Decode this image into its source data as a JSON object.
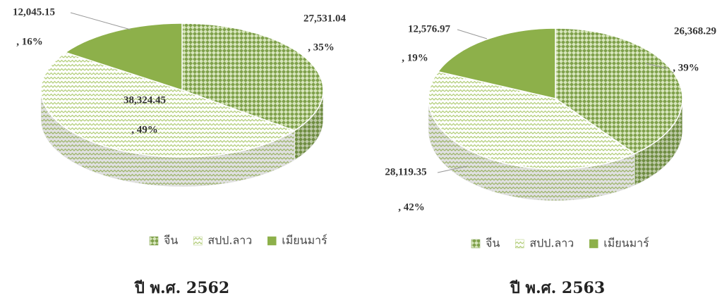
{
  "chart_data": [
    {
      "type": "pie3d",
      "title": "ปี พ.ศ. 2562",
      "categories": [
        "จีน",
        "สปป.ลาว",
        "เมียนมาร์"
      ],
      "values": [
        27531.04,
        38324.45,
        12045.15
      ],
      "value_labels": [
        "27,531.04",
        "38,324.45",
        "12,045.15"
      ],
      "percent_labels": [
        ", 35%",
        ", 49%",
        ", 16%"
      ],
      "colors": [
        "#7ea04a",
        "#b5cf7e",
        "#8db04a"
      ]
    },
    {
      "type": "pie3d",
      "title": "ปี พ.ศ. 2563",
      "categories": [
        "จีน",
        "สปป.ลาว",
        "เมียนมาร์"
      ],
      "values": [
        26368.29,
        28119.35,
        12576.97
      ],
      "value_labels": [
        "26,368.29",
        "28,119.35",
        "12,576.97"
      ],
      "percent_labels": [
        ", 39%",
        ", 42%",
        ", 19%"
      ],
      "colors": [
        "#7ea04a",
        "#b5cf7e",
        "#8db04a"
      ]
    }
  ]
}
